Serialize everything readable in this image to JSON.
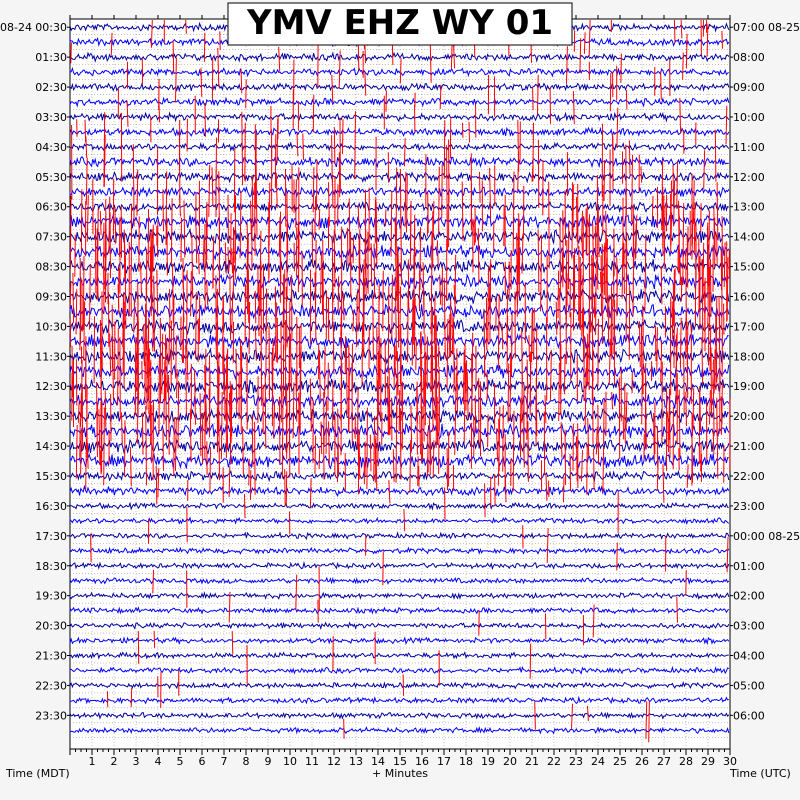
{
  "chart_data": {
    "type": "line",
    "title": "YMV EHZ WY 01",
    "xlabel": "+ Minutes",
    "ylabel_left": "Time (MDT)",
    "ylabel_right": "Time (UTC)",
    "date_left": "08-24",
    "date_right": "08-25",
    "xlim": [
      0,
      30
    ],
    "x_ticks": [
      "1",
      "2",
      "3",
      "4",
      "5",
      "6",
      "7",
      "8",
      "9",
      "10",
      "11",
      "12",
      "13",
      "14",
      "15",
      "16",
      "17",
      "18",
      "19",
      "20",
      "21",
      "22",
      "23",
      "24",
      "25",
      "26",
      "27",
      "28",
      "29",
      "30"
    ],
    "rows_per_hour": 2,
    "trace_count": 48,
    "left_labels": [
      "00:30",
      "01:30",
      "02:30",
      "03:30",
      "04:30",
      "05:30",
      "06:30",
      "07:30",
      "08:30",
      "09:30",
      "10:30",
      "11:30",
      "12:30",
      "13:30",
      "14:30",
      "15:30",
      "16:30",
      "17:30",
      "18:30",
      "19:30",
      "20:30",
      "21:30",
      "22:30",
      "23:30"
    ],
    "right_labels": [
      "07:00",
      "08:00",
      "09:00",
      "10:00",
      "11:00",
      "12:00",
      "13:00",
      "14:00",
      "15:00",
      "16:00",
      "17:00",
      "18:00",
      "19:00",
      "20:00",
      "21:00",
      "22:00",
      "23:00",
      "00:00 08-25",
      "01:00",
      "02:00",
      "03:00",
      "04:00",
      "05:00",
      "06:00"
    ],
    "series_colors": [
      "#0000a0",
      "#0000ff"
    ],
    "clip_color": "#ff0000",
    "grid": true
  }
}
